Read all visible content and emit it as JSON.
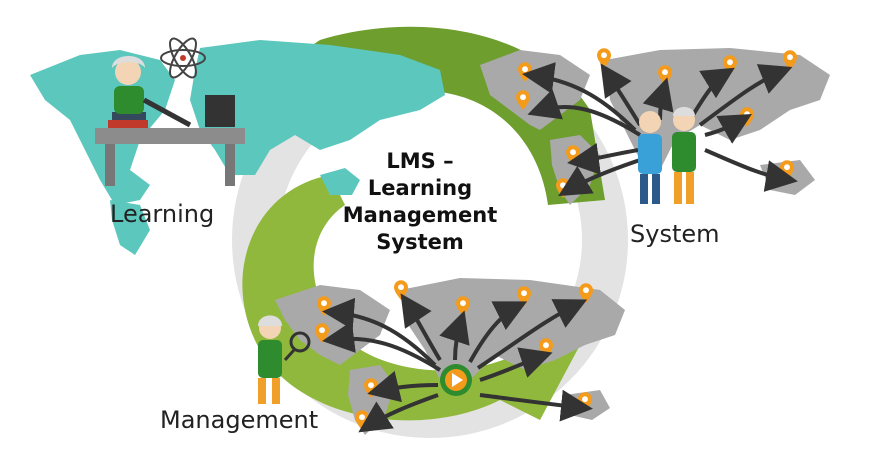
{
  "title_lines": [
    "LMS –",
    "Learning",
    "Management",
    "System"
  ],
  "labels": {
    "learning": "Learning",
    "system": "System",
    "management": "Management"
  },
  "colors": {
    "arrow_dark_green": "#6e9e2e",
    "arrow_light_green": "#8fb83c",
    "map_teal": "#5cc7bd",
    "map_gray": "#a9a9a9",
    "pin_orange": "#f49b1c",
    "ring_gray": "#e2e2e2"
  },
  "icons": [
    "atom-icon",
    "computer-monitor-icon",
    "magnifier-icon",
    "play-logo-icon",
    "map-pin-icon"
  ]
}
